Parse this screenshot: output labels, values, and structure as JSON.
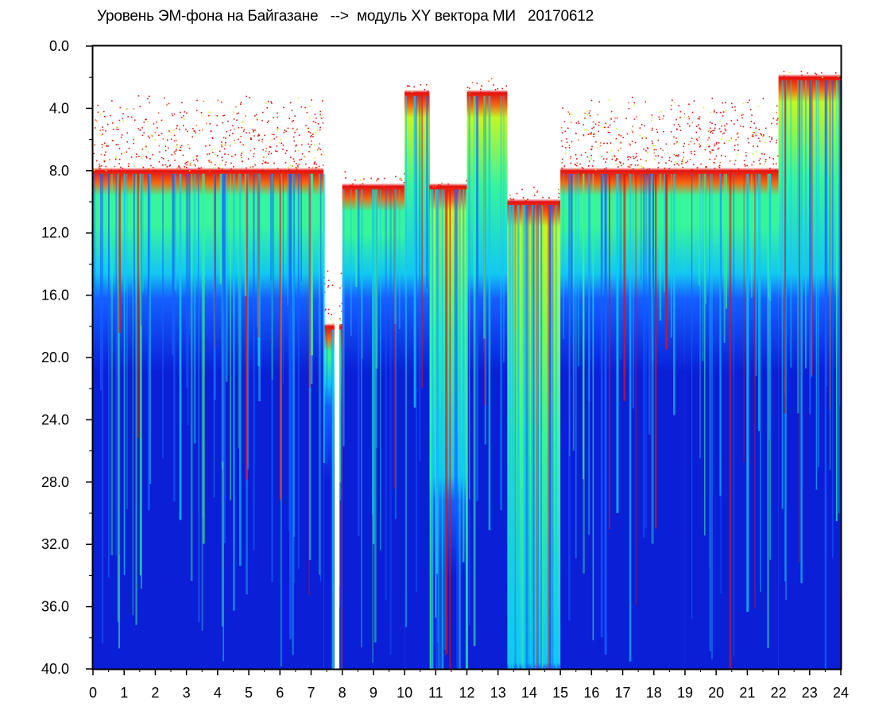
{
  "chart_data": {
    "type": "heatmap",
    "title": "Уровень ЭМ-фона на Байгазане   -->  модуль XY вектора МИ   20170612",
    "xlabel": "",
    "ylabel": "",
    "xlim": [
      0,
      24
    ],
    "ylim": [
      0,
      40
    ],
    "y_axis_inverted": true,
    "x_ticks": [
      "0",
      "1",
      "2",
      "3",
      "4",
      "5",
      "6",
      "7",
      "8",
      "9",
      "10",
      "11",
      "12",
      "13",
      "14",
      "15",
      "16",
      "17",
      "18",
      "19",
      "20",
      "21",
      "22",
      "23",
      "24"
    ],
    "y_ticks": [
      "0.0",
      "4.0",
      "8.0",
      "12.0",
      "16.0",
      "20.0",
      "24.0",
      "28.0",
      "32.0",
      "36.0",
      "40.0"
    ],
    "colormap": [
      "#ffffff",
      "#0a1fd6",
      "#1460ff",
      "#12c8f0",
      "#38f59a",
      "#c8f520",
      "#f56a10",
      "#e41010"
    ],
    "grid": false,
    "bands": [
      {
        "x": [
          0,
          7.4
        ],
        "sparse_red_top": 3.0,
        "dense_top": 8.0,
        "green_bottom": 15.0,
        "level": "low-medium"
      },
      {
        "x": [
          7.4,
          8.0
        ],
        "sparse_red_top": 14.0,
        "dense_top": 18.0,
        "green_bottom": 22.0,
        "level": "gap"
      },
      {
        "x": [
          8.0,
          10.0
        ],
        "sparse_red_top": 8.0,
        "dense_top": 9.0,
        "green_bottom": 15.0,
        "level": "medium"
      },
      {
        "x": [
          10.0,
          10.8
        ],
        "sparse_red_top": 2.0,
        "dense_top": 3.0,
        "green_bottom": 15.0,
        "level": "high"
      },
      {
        "x": [
          10.8,
          12.0
        ],
        "sparse_red_top": 8.5,
        "dense_top": 9.0,
        "green_bottom": 28.0,
        "level": "high"
      },
      {
        "x": [
          12.0,
          13.3
        ],
        "sparse_red_top": 2.0,
        "dense_top": 3.0,
        "green_bottom": 15.0,
        "level": "high"
      },
      {
        "x": [
          13.3,
          15.0
        ],
        "sparse_red_top": 9.0,
        "dense_top": 10.0,
        "green_bottom": 40.0,
        "level": "very-high"
      },
      {
        "x": [
          15.0,
          19.0
        ],
        "sparse_red_top": 3.0,
        "dense_top": 8.0,
        "green_bottom": 15.0,
        "level": "medium"
      },
      {
        "x": [
          19.0,
          22.0
        ],
        "sparse_red_top": 3.0,
        "dense_top": 8.0,
        "green_bottom": 15.0,
        "level": "medium"
      },
      {
        "x": [
          22.0,
          24.0
        ],
        "sparse_red_top": 1.5,
        "dense_top": 2.0,
        "green_bottom": 15.0,
        "level": "high"
      }
    ]
  }
}
